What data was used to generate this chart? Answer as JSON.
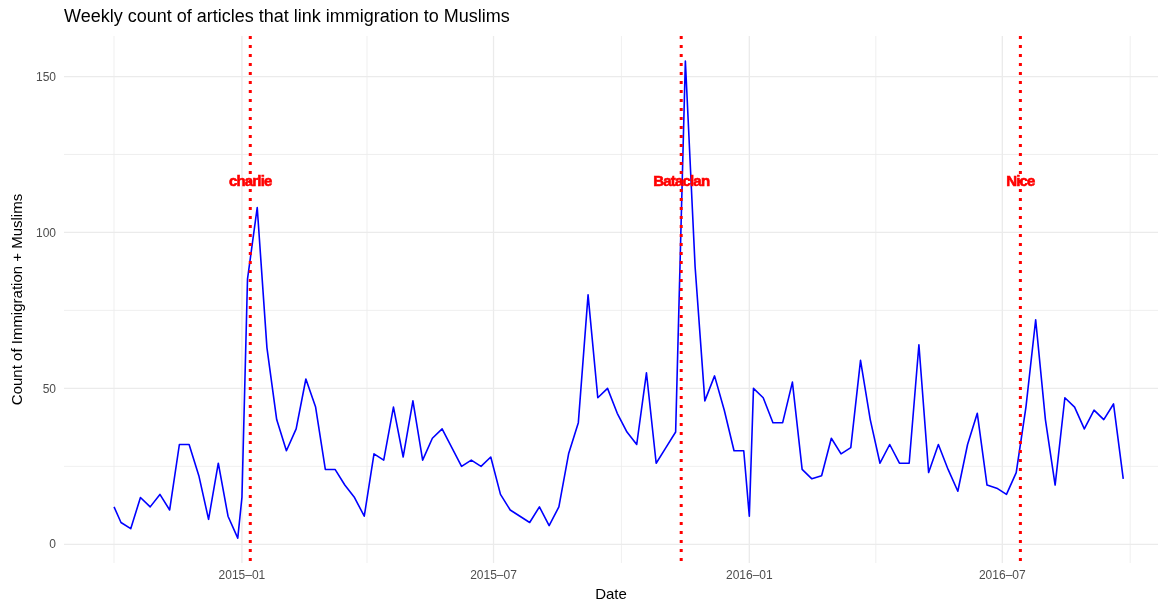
{
  "chart_data": {
    "type": "line",
    "title": "Weekly count of articles that link immigration to Muslims",
    "xlabel": "Date",
    "ylabel": "Count of Immigration + Muslims",
    "x": [
      "2014-10-01",
      "2014-10-06",
      "2014-10-13",
      "2014-10-20",
      "2014-10-27",
      "2014-11-03",
      "2014-11-10",
      "2014-11-17",
      "2014-11-24",
      "2014-12-01",
      "2014-12-08",
      "2014-12-15",
      "2014-12-22",
      "2014-12-29",
      "2015-01-01",
      "2015-01-05",
      "2015-01-12",
      "2015-01-19",
      "2015-01-26",
      "2015-02-02",
      "2015-02-09",
      "2015-02-16",
      "2015-02-23",
      "2015-03-02",
      "2015-03-09",
      "2015-03-16",
      "2015-03-23",
      "2015-03-30",
      "2015-04-06",
      "2015-04-13",
      "2015-04-20",
      "2015-04-27",
      "2015-05-04",
      "2015-05-11",
      "2015-05-18",
      "2015-05-25",
      "2015-06-01",
      "2015-06-08",
      "2015-06-15",
      "2015-06-22",
      "2015-06-29",
      "2015-07-06",
      "2015-07-13",
      "2015-07-20",
      "2015-07-27",
      "2015-08-03",
      "2015-08-10",
      "2015-08-17",
      "2015-08-24",
      "2015-08-31",
      "2015-09-07",
      "2015-09-14",
      "2015-09-21",
      "2015-09-28",
      "2015-10-05",
      "2015-10-12",
      "2015-10-19",
      "2015-10-26",
      "2015-11-02",
      "2015-11-09",
      "2015-11-16",
      "2015-11-23",
      "2015-11-30",
      "2015-12-07",
      "2015-12-14",
      "2015-12-21",
      "2015-12-28",
      "2016-01-01",
      "2016-01-04",
      "2016-01-11",
      "2016-01-18",
      "2016-01-25",
      "2016-02-01",
      "2016-02-08",
      "2016-02-15",
      "2016-02-22",
      "2016-02-29",
      "2016-03-07",
      "2016-03-14",
      "2016-03-21",
      "2016-03-28",
      "2016-04-04",
      "2016-04-11",
      "2016-04-18",
      "2016-04-25",
      "2016-05-02",
      "2016-05-09",
      "2016-05-16",
      "2016-05-23",
      "2016-05-30",
      "2016-06-06",
      "2016-06-13",
      "2016-06-20",
      "2016-06-27",
      "2016-07-04",
      "2016-07-11",
      "2016-07-18",
      "2016-07-25",
      "2016-08-01",
      "2016-08-08",
      "2016-08-15",
      "2016-08-22",
      "2016-08-29",
      "2016-09-05",
      "2016-09-12",
      "2016-09-19",
      "2016-09-26"
    ],
    "series": [
      {
        "color": "#0000ff",
        "values": [
          12,
          7,
          5,
          15,
          12,
          16,
          11,
          32,
          32,
          22,
          8,
          26,
          9,
          2,
          15,
          85,
          108,
          63,
          40,
          30,
          37,
          53,
          44,
          24,
          24,
          19,
          15,
          9,
          29,
          27,
          44,
          28,
          46,
          27,
          34,
          37,
          31,
          25,
          27,
          25,
          28,
          16,
          11,
          9,
          7,
          12,
          6,
          12,
          29,
          39,
          80,
          47,
          50,
          42,
          36,
          32,
          55,
          26,
          31,
          36,
          155,
          89,
          46,
          54,
          43,
          30,
          30,
          9,
          50,
          47,
          39,
          39,
          52,
          24,
          21,
          22,
          34,
          29,
          31,
          59,
          40,
          26,
          32,
          26,
          26,
          64,
          23,
          32,
          24,
          17,
          32,
          42,
          19,
          18,
          16,
          23,
          44,
          72,
          40,
          19,
          47,
          44,
          37,
          43,
          40,
          45,
          21
        ]
      }
    ],
    "xlim": [
      "2014-08-26",
      "2016-10-21"
    ],
    "xticks": [
      {
        "value": "2014-10-01",
        "label": null
      },
      {
        "value": "2015-01-01",
        "label": "2015–01"
      },
      {
        "value": "2015-04-01",
        "label": null
      },
      {
        "value": "2015-07-01",
        "label": "2015–07"
      },
      {
        "value": "2015-10-01",
        "label": null
      },
      {
        "value": "2016-01-01",
        "label": "2016–01"
      },
      {
        "value": "2016-04-01",
        "label": null
      },
      {
        "value": "2016-07-01",
        "label": "2016–07"
      },
      {
        "value": "2016-10-01",
        "label": null
      }
    ],
    "ylim": [
      -6,
      163
    ],
    "yticks": [
      0,
      {
        "value": 25,
        "label": null
      },
      50,
      {
        "value": 75,
        "label": null
      },
      100,
      {
        "value": 125,
        "label": null
      },
      150
    ],
    "grid": true,
    "line_style": "solid",
    "marker": "none",
    "ref_lines": [
      {
        "axis": "x",
        "value": "2015-01-07",
        "label": "charlie",
        "color": "#ff0000",
        "line_style": "dotted"
      },
      {
        "axis": "x",
        "value": "2015-11-13",
        "label": "Bataclan",
        "color": "#ff0000",
        "line_style": "dotted"
      },
      {
        "axis": "x",
        "value": "2016-07-14",
        "label": "Nice",
        "color": "#ff0000",
        "line_style": "dotted"
      }
    ]
  }
}
